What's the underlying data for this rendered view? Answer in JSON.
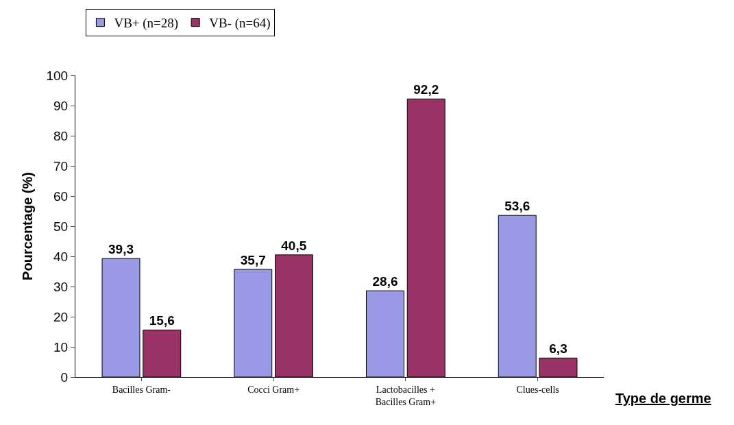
{
  "chart_data": {
    "type": "bar",
    "xlabel": "Type de germe",
    "ylabel": "Pourcentage (%)",
    "categories": [
      "Bacilles Gram-",
      "Cocci Gram+",
      "Lactobacilles +\nBacilles Gram+",
      "Clues-cells"
    ],
    "series": [
      {
        "name": "VB+ (n=28)",
        "color": "#9999e6",
        "values": [
          39.3,
          35.7,
          28.6,
          53.6
        ],
        "value_labels": [
          "39,3",
          "35,7",
          "28,6",
          "53,6"
        ]
      },
      {
        "name": "VB- (n=64)",
        "color": "#993366",
        "values": [
          15.6,
          40.5,
          92.2,
          6.3
        ],
        "value_labels": [
          "15,6",
          "40,5",
          "92,2",
          "6,3"
        ]
      }
    ],
    "ylim": [
      0,
      100
    ],
    "yticks": [
      0,
      10,
      20,
      30,
      40,
      50,
      60,
      70,
      80,
      90,
      100
    ],
    "grid": false,
    "legend": "top left"
  }
}
